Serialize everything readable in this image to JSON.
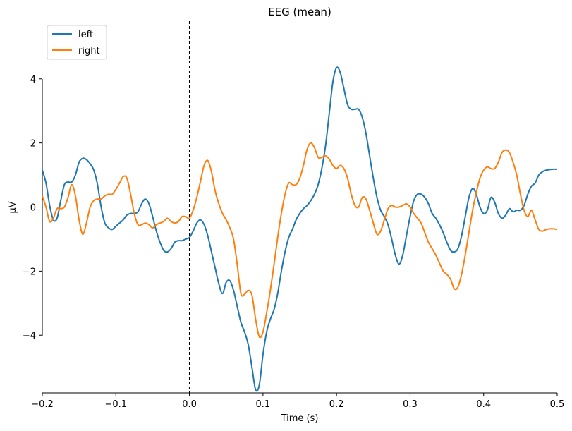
{
  "chart_data": {
    "type": "line",
    "title": "EEG (mean)",
    "xlabel": "Time (s)",
    "ylabel": "µV",
    "xlim": [
      -0.2,
      0.5
    ],
    "ylim": [
      -5.8,
      5.8
    ],
    "x_ticks": [
      -0.2,
      -0.1,
      0.0,
      0.1,
      0.2,
      0.3,
      0.4,
      0.5
    ],
    "x_tick_labels": [
      "−0.2",
      "−0.1",
      "0.0",
      "0.1",
      "0.2",
      "0.3",
      "0.4",
      "0.5"
    ],
    "y_ticks": [
      -4,
      -2,
      0,
      2,
      4
    ],
    "y_tick_labels": [
      "−4",
      "−2",
      "0",
      "2",
      "4"
    ],
    "grid": false,
    "legend_position": "top-left",
    "zero_line": true,
    "event_marker_x": 0.0,
    "series": [
      {
        "name": "left",
        "color": "#1f77b4",
        "points": [
          [
            -0.2,
            1.15
          ],
          [
            -0.195,
            0.75
          ],
          [
            -0.19,
            0.05
          ],
          [
            -0.185,
            -0.4
          ],
          [
            -0.18,
            -0.35
          ],
          [
            -0.175,
            0.2
          ],
          [
            -0.17,
            0.7
          ],
          [
            -0.165,
            0.78
          ],
          [
            -0.16,
            0.78
          ],
          [
            -0.155,
            1.0
          ],
          [
            -0.15,
            1.4
          ],
          [
            -0.145,
            1.52
          ],
          [
            -0.14,
            1.48
          ],
          [
            -0.135,
            1.35
          ],
          [
            -0.13,
            1.15
          ],
          [
            -0.125,
            0.7
          ],
          [
            -0.12,
            0.0
          ],
          [
            -0.115,
            -0.5
          ],
          [
            -0.11,
            -0.65
          ],
          [
            -0.105,
            -0.7
          ],
          [
            -0.1,
            -0.6
          ],
          [
            -0.095,
            -0.5
          ],
          [
            -0.09,
            -0.4
          ],
          [
            -0.085,
            -0.25
          ],
          [
            -0.08,
            -0.2
          ],
          [
            -0.075,
            -0.2
          ],
          [
            -0.07,
            -0.15
          ],
          [
            -0.065,
            0.1
          ],
          [
            -0.06,
            0.25
          ],
          [
            -0.055,
            0.1
          ],
          [
            -0.05,
            -0.3
          ],
          [
            -0.045,
            -0.75
          ],
          [
            -0.04,
            -1.1
          ],
          [
            -0.035,
            -1.35
          ],
          [
            -0.03,
            -1.4
          ],
          [
            -0.025,
            -1.3
          ],
          [
            -0.02,
            -1.1
          ],
          [
            -0.015,
            -1.05
          ],
          [
            -0.01,
            -1.05
          ],
          [
            -0.005,
            -1.0
          ],
          [
            0.0,
            -0.95
          ],
          [
            0.005,
            -0.75
          ],
          [
            0.01,
            -0.5
          ],
          [
            0.015,
            -0.4
          ],
          [
            0.02,
            -0.55
          ],
          [
            0.025,
            -0.9
          ],
          [
            0.03,
            -1.4
          ],
          [
            0.035,
            -1.9
          ],
          [
            0.04,
            -2.4
          ],
          [
            0.045,
            -2.7
          ],
          [
            0.05,
            -2.35
          ],
          [
            0.055,
            -2.3
          ],
          [
            0.06,
            -2.6
          ],
          [
            0.065,
            -3.1
          ],
          [
            0.07,
            -3.6
          ],
          [
            0.075,
            -3.9
          ],
          [
            0.08,
            -4.3
          ],
          [
            0.085,
            -5.0
          ],
          [
            0.09,
            -5.7
          ],
          [
            0.095,
            -5.55
          ],
          [
            0.1,
            -4.6
          ],
          [
            0.105,
            -3.9
          ],
          [
            0.11,
            -3.5
          ],
          [
            0.115,
            -3.2
          ],
          [
            0.12,
            -2.7
          ],
          [
            0.125,
            -2.0
          ],
          [
            0.13,
            -1.4
          ],
          [
            0.135,
            -0.95
          ],
          [
            0.14,
            -0.7
          ],
          [
            0.145,
            -0.4
          ],
          [
            0.15,
            -0.2
          ],
          [
            0.155,
            -0.05
          ],
          [
            0.16,
            0.05
          ],
          [
            0.165,
            0.2
          ],
          [
            0.17,
            0.4
          ],
          [
            0.175,
            0.7
          ],
          [
            0.18,
            1.2
          ],
          [
            0.185,
            1.9
          ],
          [
            0.19,
            2.9
          ],
          [
            0.195,
            3.9
          ],
          [
            0.2,
            4.35
          ],
          [
            0.205,
            4.2
          ],
          [
            0.21,
            3.7
          ],
          [
            0.215,
            3.2
          ],
          [
            0.22,
            3.05
          ],
          [
            0.225,
            3.05
          ],
          [
            0.23,
            3.05
          ],
          [
            0.235,
            2.8
          ],
          [
            0.24,
            2.3
          ],
          [
            0.245,
            1.6
          ],
          [
            0.25,
            0.9
          ],
          [
            0.255,
            0.3
          ],
          [
            0.26,
            -0.1
          ],
          [
            0.265,
            -0.3
          ],
          [
            0.27,
            -0.55
          ],
          [
            0.275,
            -1.0
          ],
          [
            0.28,
            -1.5
          ],
          [
            0.285,
            -1.78
          ],
          [
            0.29,
            -1.5
          ],
          [
            0.295,
            -0.9
          ],
          [
            0.3,
            -0.3
          ],
          [
            0.305,
            0.2
          ],
          [
            0.31,
            0.4
          ],
          [
            0.315,
            0.4
          ],
          [
            0.32,
            0.3
          ],
          [
            0.325,
            0.1
          ],
          [
            0.33,
            -0.2
          ],
          [
            0.335,
            -0.35
          ],
          [
            0.34,
            -0.55
          ],
          [
            0.345,
            -0.8
          ],
          [
            0.35,
            -1.1
          ],
          [
            0.355,
            -1.35
          ],
          [
            0.36,
            -1.4
          ],
          [
            0.365,
            -1.3
          ],
          [
            0.37,
            -0.9
          ],
          [
            0.375,
            -0.3
          ],
          [
            0.38,
            0.3
          ],
          [
            0.385,
            0.58
          ],
          [
            0.39,
            0.4
          ],
          [
            0.395,
            0.0
          ],
          [
            0.4,
            -0.2
          ],
          [
            0.405,
            -0.1
          ],
          [
            0.41,
            0.3
          ],
          [
            0.415,
            0.15
          ],
          [
            0.42,
            -0.2
          ],
          [
            0.425,
            -0.35
          ],
          [
            0.43,
            -0.25
          ],
          [
            0.435,
            -0.05
          ],
          [
            0.44,
            -0.15
          ],
          [
            0.445,
            -0.1
          ],
          [
            0.45,
            -0.1
          ],
          [
            0.455,
            0.05
          ],
          [
            0.46,
            0.4
          ],
          [
            0.465,
            0.65
          ],
          [
            0.47,
            0.75
          ],
          [
            0.475,
            1.0
          ],
          [
            0.48,
            1.1
          ],
          [
            0.485,
            1.15
          ],
          [
            0.49,
            1.17
          ],
          [
            0.495,
            1.18
          ],
          [
            0.5,
            1.18
          ]
        ]
      },
      {
        "name": "right",
        "color": "#ff7f0e",
        "points": [
          [
            -0.2,
            0.35
          ],
          [
            -0.195,
            0.0
          ],
          [
            -0.19,
            -0.45
          ],
          [
            -0.185,
            -0.35
          ],
          [
            -0.18,
            -0.05
          ],
          [
            -0.175,
            -0.05
          ],
          [
            -0.17,
            0.0
          ],
          [
            -0.165,
            0.3
          ],
          [
            -0.16,
            0.7
          ],
          [
            -0.155,
            0.35
          ],
          [
            -0.15,
            -0.4
          ],
          [
            -0.145,
            -0.85
          ],
          [
            -0.14,
            -0.5
          ],
          [
            -0.135,
            0.0
          ],
          [
            -0.13,
            0.2
          ],
          [
            -0.125,
            0.25
          ],
          [
            -0.12,
            0.25
          ],
          [
            -0.115,
            0.35
          ],
          [
            -0.11,
            0.4
          ],
          [
            -0.105,
            0.4
          ],
          [
            -0.1,
            0.55
          ],
          [
            -0.095,
            0.75
          ],
          [
            -0.09,
            0.95
          ],
          [
            -0.085,
            0.9
          ],
          [
            -0.08,
            0.4
          ],
          [
            -0.075,
            -0.2
          ],
          [
            -0.07,
            -0.55
          ],
          [
            -0.065,
            -0.55
          ],
          [
            -0.06,
            -0.5
          ],
          [
            -0.055,
            -0.55
          ],
          [
            -0.05,
            -0.65
          ],
          [
            -0.045,
            -0.55
          ],
          [
            -0.04,
            -0.5
          ],
          [
            -0.035,
            -0.45
          ],
          [
            -0.03,
            -0.35
          ],
          [
            -0.025,
            -0.45
          ],
          [
            -0.02,
            -0.5
          ],
          [
            -0.015,
            -0.45
          ],
          [
            -0.01,
            -0.3
          ],
          [
            -0.005,
            -0.3
          ],
          [
            0.0,
            -0.35
          ],
          [
            0.005,
            -0.1
          ],
          [
            0.01,
            0.3
          ],
          [
            0.015,
            0.8
          ],
          [
            0.02,
            1.3
          ],
          [
            0.025,
            1.45
          ],
          [
            0.03,
            1.1
          ],
          [
            0.035,
            0.5
          ],
          [
            0.04,
            0.1
          ],
          [
            0.045,
            -0.2
          ],
          [
            0.05,
            -0.4
          ],
          [
            0.055,
            -0.65
          ],
          [
            0.06,
            -1.0
          ],
          [
            0.065,
            -1.8
          ],
          [
            0.07,
            -2.7
          ],
          [
            0.075,
            -2.72
          ],
          [
            0.08,
            -2.6
          ],
          [
            0.085,
            -2.75
          ],
          [
            0.09,
            -3.5
          ],
          [
            0.095,
            -4.05
          ],
          [
            0.1,
            -3.9
          ],
          [
            0.105,
            -3.3
          ],
          [
            0.11,
            -2.6
          ],
          [
            0.115,
            -1.8
          ],
          [
            0.12,
            -0.95
          ],
          [
            0.125,
            -0.2
          ],
          [
            0.13,
            0.4
          ],
          [
            0.135,
            0.75
          ],
          [
            0.14,
            0.7
          ],
          [
            0.145,
            0.7
          ],
          [
            0.15,
            0.9
          ],
          [
            0.155,
            1.3
          ],
          [
            0.16,
            1.8
          ],
          [
            0.165,
            2.0
          ],
          [
            0.17,
            1.85
          ],
          [
            0.175,
            1.55
          ],
          [
            0.18,
            1.55
          ],
          [
            0.185,
            1.6
          ],
          [
            0.19,
            1.5
          ],
          [
            0.195,
            1.3
          ],
          [
            0.2,
            1.2
          ],
          [
            0.205,
            1.3
          ],
          [
            0.21,
            1.2
          ],
          [
            0.215,
            0.9
          ],
          [
            0.22,
            0.4
          ],
          [
            0.225,
            0.05
          ],
          [
            0.23,
            0.0
          ],
          [
            0.235,
            0.3
          ],
          [
            0.24,
            0.25
          ],
          [
            0.245,
            -0.1
          ],
          [
            0.25,
            -0.5
          ],
          [
            0.255,
            -0.85
          ],
          [
            0.26,
            -0.75
          ],
          [
            0.265,
            -0.4
          ],
          [
            0.27,
            -0.05
          ],
          [
            0.275,
            0.05
          ],
          [
            0.28,
            0.0
          ],
          [
            0.285,
            0.0
          ],
          [
            0.29,
            0.05
          ],
          [
            0.295,
            0.1
          ],
          [
            0.3,
            0.0
          ],
          [
            0.305,
            -0.2
          ],
          [
            0.31,
            -0.35
          ],
          [
            0.315,
            -0.5
          ],
          [
            0.32,
            -0.8
          ],
          [
            0.325,
            -1.1
          ],
          [
            0.33,
            -1.3
          ],
          [
            0.335,
            -1.5
          ],
          [
            0.34,
            -1.75
          ],
          [
            0.345,
            -2.0
          ],
          [
            0.35,
            -2.1
          ],
          [
            0.355,
            -2.25
          ],
          [
            0.36,
            -2.55
          ],
          [
            0.365,
            -2.5
          ],
          [
            0.37,
            -2.1
          ],
          [
            0.375,
            -1.5
          ],
          [
            0.38,
            -0.8
          ],
          [
            0.385,
            -0.1
          ],
          [
            0.39,
            0.45
          ],
          [
            0.395,
            0.9
          ],
          [
            0.4,
            1.15
          ],
          [
            0.405,
            1.25
          ],
          [
            0.41,
            1.2
          ],
          [
            0.415,
            1.2
          ],
          [
            0.42,
            1.4
          ],
          [
            0.425,
            1.7
          ],
          [
            0.43,
            1.78
          ],
          [
            0.435,
            1.7
          ],
          [
            0.44,
            1.4
          ],
          [
            0.445,
            1.0
          ],
          [
            0.45,
            0.4
          ],
          [
            0.455,
            -0.1
          ],
          [
            0.46,
            -0.3
          ],
          [
            0.465,
            -0.1
          ],
          [
            0.47,
            -0.4
          ],
          [
            0.475,
            -0.7
          ],
          [
            0.48,
            -0.75
          ],
          [
            0.485,
            -0.7
          ],
          [
            0.49,
            -0.68
          ],
          [
            0.495,
            -0.68
          ],
          [
            0.5,
            -0.7
          ]
        ]
      }
    ]
  }
}
